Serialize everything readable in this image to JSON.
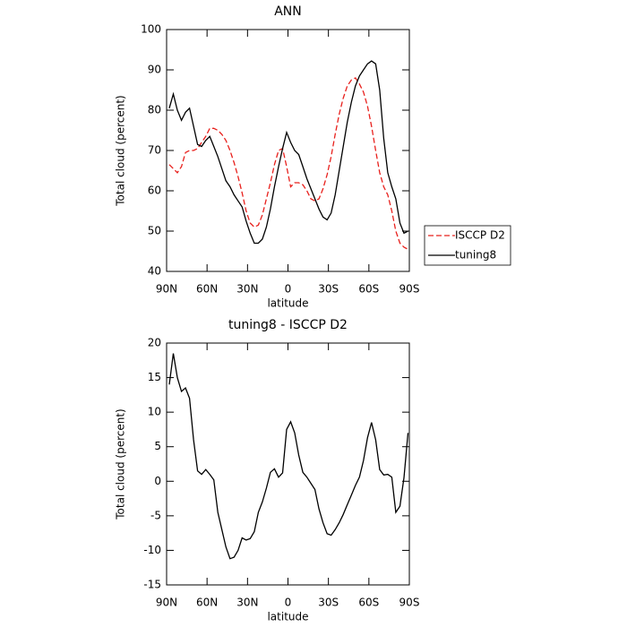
{
  "chart_data": [
    {
      "type": "line",
      "title": "ANN",
      "x_label": "latitude",
      "y_label": "Total cloud (percent)",
      "x": [
        88,
        85,
        82,
        79,
        76,
        73,
        70,
        67,
        64,
        61,
        58,
        55,
        52,
        49,
        46,
        43,
        40,
        37,
        34,
        31,
        28,
        25,
        22,
        19,
        16,
        13,
        10,
        7,
        4,
        1,
        -2,
        -5,
        -8,
        -11,
        -14,
        -17,
        -20,
        -23,
        -26,
        -29,
        -32,
        -35,
        -38,
        -41,
        -44,
        -47,
        -50,
        -53,
        -56,
        -59,
        -62,
        -65,
        -68,
        -71,
        -74,
        -77,
        -80,
        -83,
        -86,
        -89
      ],
      "series": [
        {
          "name": "ISCCP D2",
          "color": "#e8201c",
          "dash": true,
          "values": [
            66.5,
            65.5,
            64.5,
            66,
            69.5,
            70,
            70,
            70.5,
            72,
            73.5,
            75.5,
            75.5,
            75,
            74,
            72.5,
            70,
            67,
            63.5,
            59.5,
            55,
            52,
            51,
            51.5,
            54,
            58,
            62,
            66.5,
            70,
            70.5,
            66,
            61,
            62,
            62,
            61.5,
            60,
            58,
            57.5,
            58,
            60.5,
            64,
            68.5,
            74,
            79,
            83,
            86,
            87.5,
            88,
            86.5,
            84.5,
            81,
            76,
            70,
            64.5,
            61,
            59,
            55,
            50,
            47,
            46,
            45.5
          ]
        },
        {
          "name": "tuning8",
          "color": "#000000",
          "dash": false,
          "values": [
            80.5,
            84,
            80,
            77.5,
            79.5,
            80.5,
            76,
            71.5,
            71,
            72.5,
            73.5,
            71,
            68.5,
            65.5,
            62.5,
            61,
            59,
            57.5,
            56,
            52.5,
            49.5,
            47,
            47,
            48,
            51,
            55.5,
            61,
            66,
            70.5,
            74.5,
            72,
            70,
            69,
            66,
            63,
            60.5,
            58,
            55.5,
            53.5,
            52.8,
            54.5,
            59,
            65,
            71,
            77,
            82,
            86,
            88.5,
            90,
            91.5,
            92.2,
            91.5,
            85,
            73,
            64.5,
            61,
            58,
            52,
            49.5,
            50
          ]
        }
      ],
      "xlim": [
        90,
        -90
      ],
      "xticks": [
        {
          "value": 90,
          "label": "90N"
        },
        {
          "value": 60,
          "label": "60N"
        },
        {
          "value": 30,
          "label": "30N"
        },
        0,
        {
          "value": -30,
          "label": "30S"
        },
        {
          "value": -60,
          "label": "60S"
        },
        {
          "value": -90,
          "label": "90S"
        }
      ],
      "ylim": [
        40,
        100
      ],
      "yticks": [
        40,
        50,
        60,
        70,
        80,
        90,
        100
      ],
      "legend": "right"
    },
    {
      "type": "line",
      "title": "tuning8 - ISCCP D2",
      "x_label": "latitude",
      "y_label": "Total cloud (percent)",
      "x": [
        88,
        85,
        82,
        79,
        76,
        73,
        70,
        67,
        64,
        61,
        58,
        55,
        52,
        49,
        46,
        43,
        40,
        37,
        34,
        31,
        28,
        25,
        22,
        19,
        16,
        13,
        10,
        7,
        4,
        1,
        -2,
        -5,
        -8,
        -11,
        -14,
        -17,
        -20,
        -23,
        -26,
        -29,
        -32,
        -35,
        -38,
        -41,
        -44,
        -47,
        -50,
        -53,
        -56,
        -59,
        -62,
        -65,
        -68,
        -71,
        -74,
        -77,
        -80,
        -83,
        -86,
        -89
      ],
      "color": "#000000",
      "values": [
        14,
        18.5,
        15,
        13,
        13.5,
        12,
        6,
        1.5,
        1,
        1.7,
        1,
        0.2,
        -4.5,
        -7,
        -9.5,
        -11.2,
        -11,
        -10,
        -8.2,
        -8.5,
        -8.3,
        -7.3,
        -4.5,
        -3,
        -1,
        1.3,
        1.8,
        0.6,
        1.2,
        7.5,
        8.6,
        7,
        3.8,
        1.3,
        0.6,
        -0.3,
        -1.2,
        -4,
        -6,
        -7.6,
        -7.8,
        -7,
        -6,
        -4.8,
        -3.4,
        -2,
        -0.6,
        0.6,
        3,
        6.3,
        8.5,
        6,
        1.7,
        0.9,
        1,
        0.6,
        -4.5,
        -3.6,
        0.5,
        7
      ],
      "xlim": [
        90,
        -90
      ],
      "xticks": [
        {
          "value": 90,
          "label": "90N"
        },
        {
          "value": 60,
          "label": "60N"
        },
        {
          "value": 30,
          "label": "30N"
        },
        0,
        {
          "value": -30,
          "label": "30S"
        },
        {
          "value": -60,
          "label": "60S"
        },
        {
          "value": -90,
          "label": "90S"
        }
      ],
      "ylim": [
        -15,
        20
      ],
      "yticks": [
        -15,
        -10,
        -5,
        0,
        5,
        10,
        15,
        20
      ]
    }
  ]
}
